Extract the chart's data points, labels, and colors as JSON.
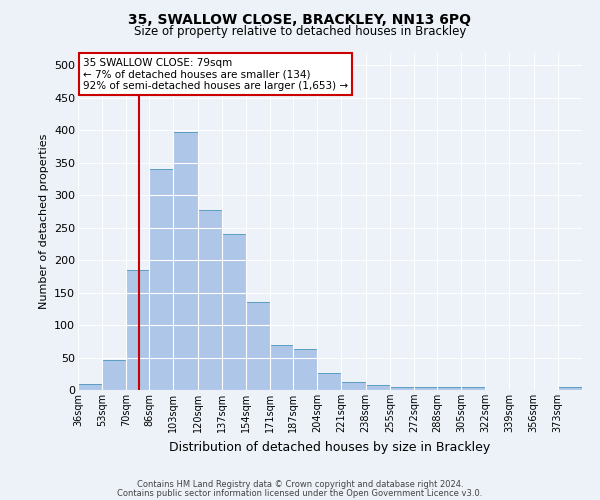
{
  "title": "35, SWALLOW CLOSE, BRACKLEY, NN13 6PQ",
  "subtitle": "Size of property relative to detached houses in Brackley",
  "xlabel": "Distribution of detached houses by size in Brackley",
  "ylabel": "Number of detached properties",
  "categories": [
    "36sqm",
    "53sqm",
    "70sqm",
    "86sqm",
    "103sqm",
    "120sqm",
    "137sqm",
    "154sqm",
    "171sqm",
    "187sqm",
    "204sqm",
    "221sqm",
    "238sqm",
    "255sqm",
    "272sqm",
    "288sqm",
    "305sqm",
    "322sqm",
    "339sqm",
    "356sqm",
    "373sqm"
  ],
  "values": [
    10,
    46,
    185,
    340,
    398,
    278,
    240,
    135,
    70,
    63,
    26,
    13,
    7,
    5,
    4,
    4,
    5,
    0,
    0,
    0,
    5
  ],
  "bar_color": "#aec6e8",
  "bar_edge_color": "#5a9fc2",
  "red_line_x": 79,
  "bin_edges": [
    36,
    53,
    70,
    86,
    103,
    120,
    137,
    154,
    171,
    187,
    204,
    221,
    238,
    255,
    272,
    288,
    305,
    322,
    339,
    356,
    373,
    390
  ],
  "annotation_line1": "35 SWALLOW CLOSE: 79sqm",
  "annotation_line2": "← 7% of detached houses are smaller (134)",
  "annotation_line3": "92% of semi-detached houses are larger (1,653) →",
  "annotation_box_color": "#ffffff",
  "annotation_box_edge": "#cc0000",
  "footer1": "Contains HM Land Registry data © Crown copyright and database right 2024.",
  "footer2": "Contains public sector information licensed under the Open Government Licence v3.0.",
  "bg_color": "#edf2f9",
  "grid_color": "#ffffff",
  "ylim": [
    0,
    520
  ],
  "yticks": [
    0,
    50,
    100,
    150,
    200,
    250,
    300,
    350,
    400,
    450,
    500
  ]
}
